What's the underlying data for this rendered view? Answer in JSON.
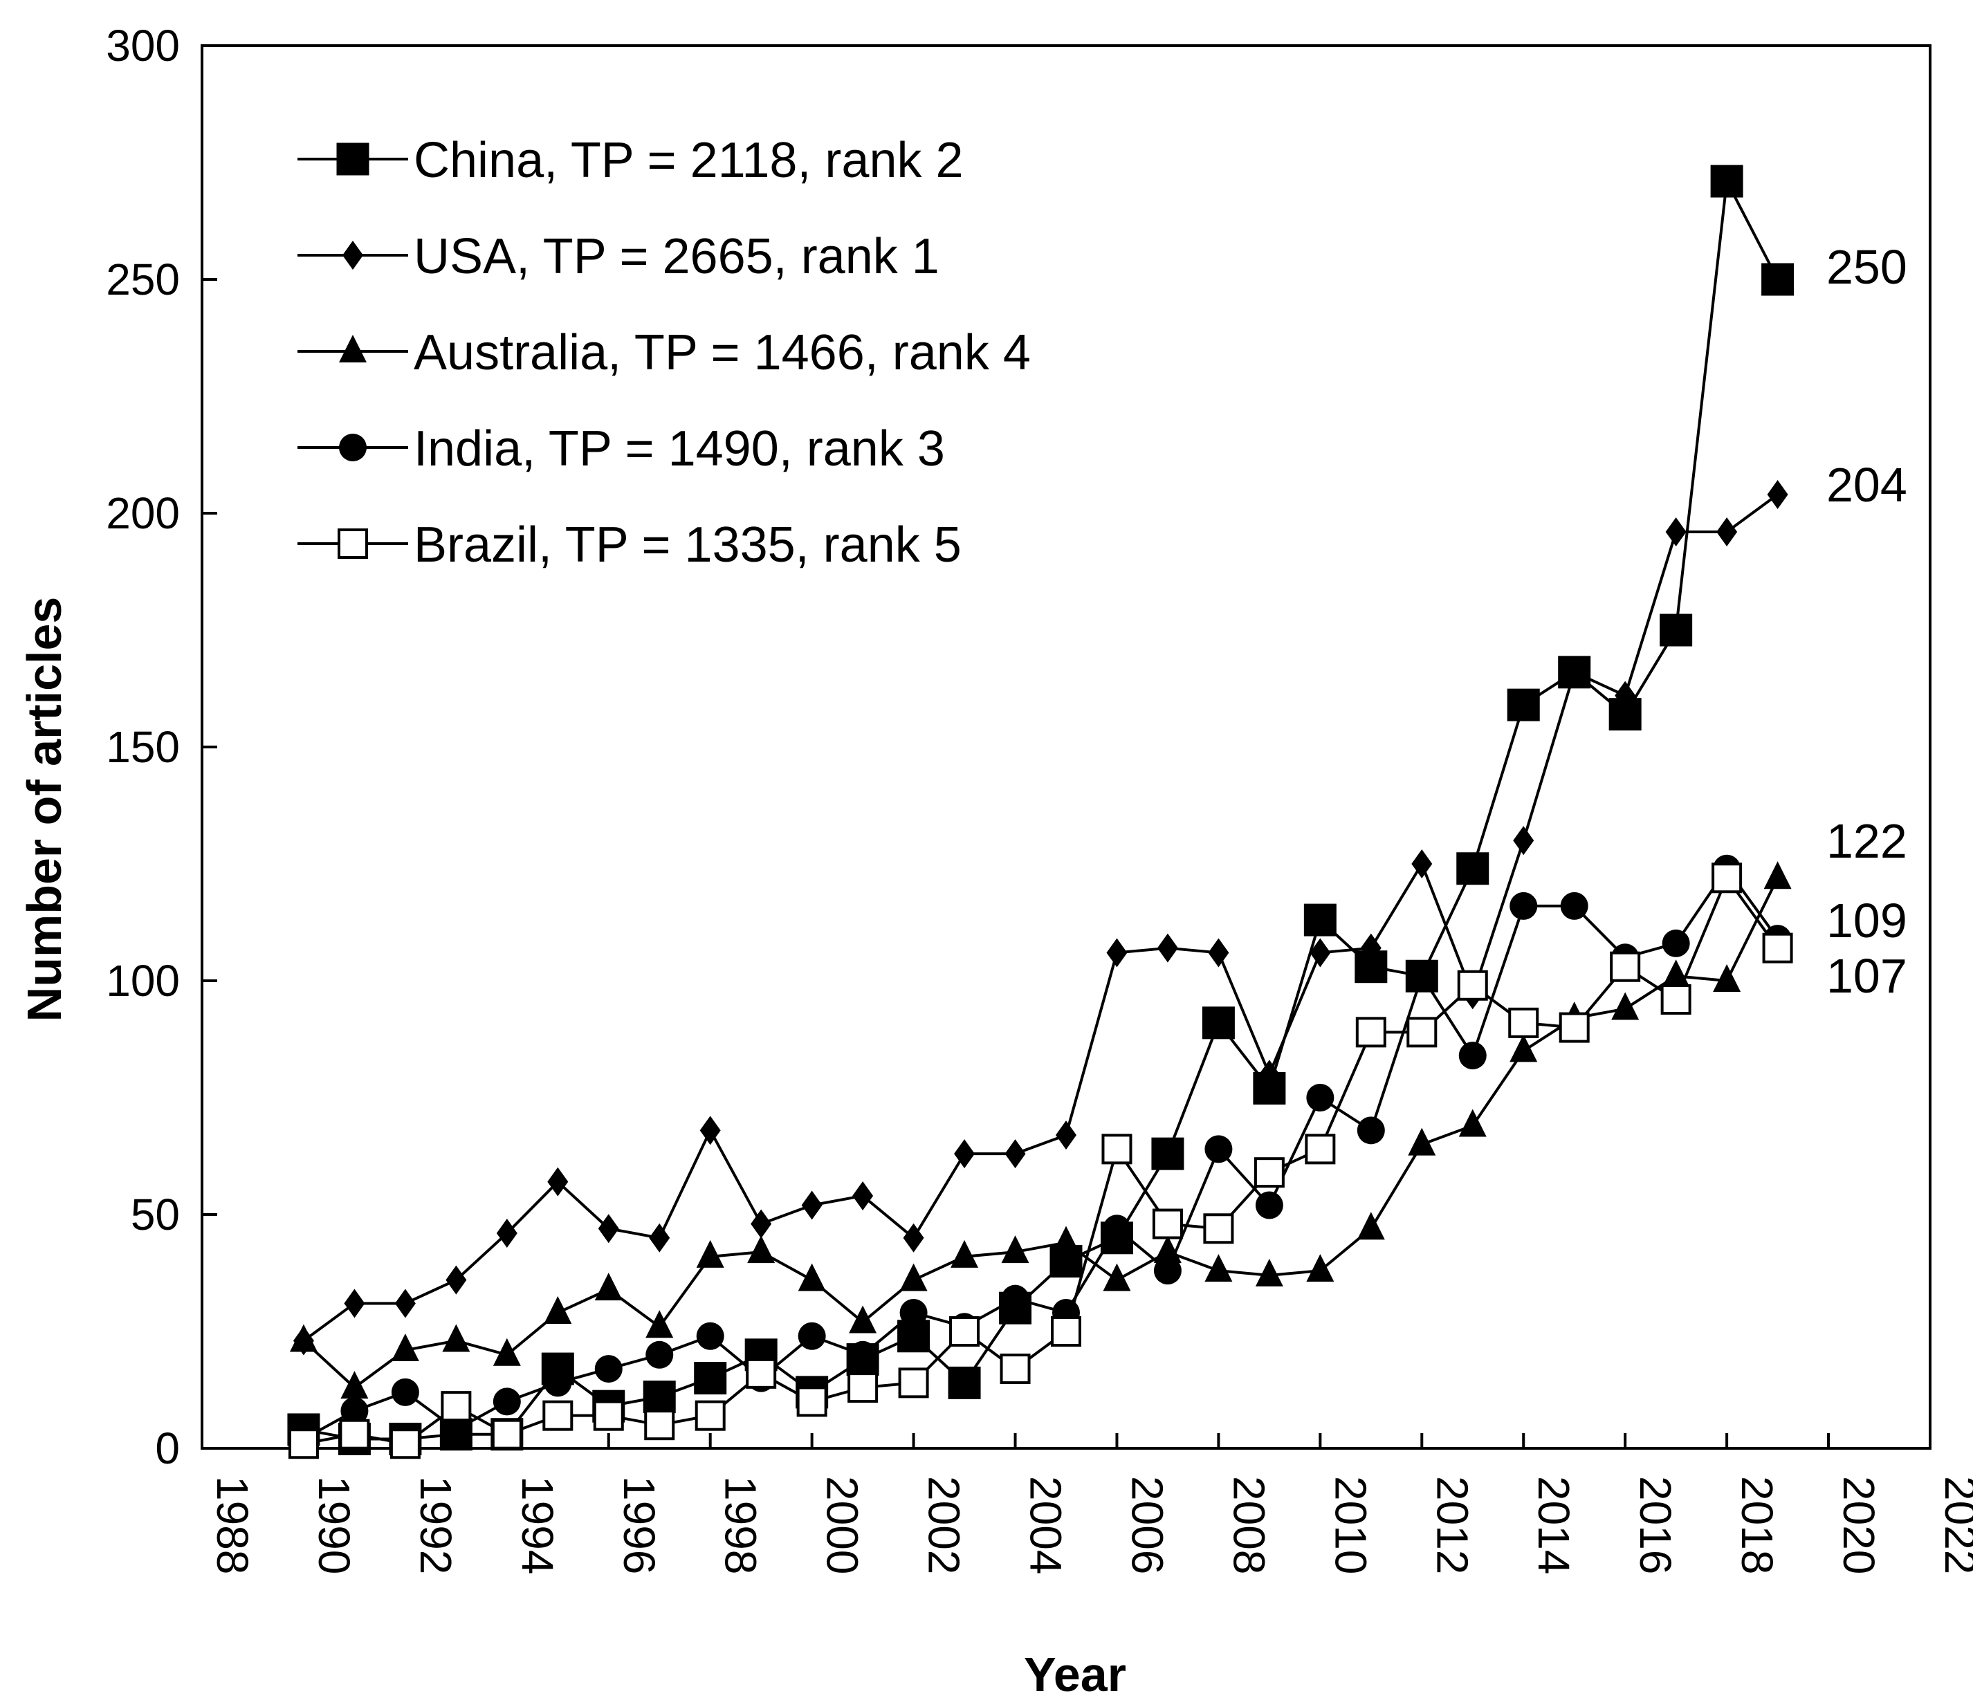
{
  "chart_data": {
    "type": "line",
    "title": "",
    "xlabel": "Year",
    "ylabel": "Number of articles",
    "xlim": [
      1988,
      2022
    ],
    "ylim": [
      0,
      300
    ],
    "xticks": [
      "1988",
      "1990",
      "1992",
      "1994",
      "1996",
      "1998",
      "2000",
      "2002",
      "2004",
      "2006",
      "2008",
      "2010",
      "2012",
      "2014",
      "2016",
      "2018",
      "2020",
      "2022"
    ],
    "yticks": [
      "0",
      "50",
      "100",
      "150",
      "200",
      "250",
      "300"
    ],
    "grid": false,
    "legend_position": "top-left",
    "x": [
      1990,
      1991,
      1992,
      1993,
      1994,
      1995,
      1996,
      1997,
      1998,
      1999,
      2000,
      2001,
      2002,
      2003,
      2004,
      2005,
      2006,
      2007,
      2008,
      2009,
      2010,
      2011,
      2012,
      2013,
      2014,
      2015,
      2016,
      2017,
      2018,
      2019
    ],
    "series": [
      {
        "name": "China, TP = 2118, rank 2",
        "marker": "square-filled",
        "values": [
          4,
          2,
          2,
          3,
          3,
          17,
          9,
          11,
          15,
          20,
          12,
          19,
          24,
          14,
          30,
          40,
          45,
          63,
          91,
          77,
          113,
          103,
          101,
          124,
          159,
          166,
          157,
          175,
          271,
          250
        ]
      },
      {
        "name": "USA, TP = 2665, rank 1",
        "marker": "diamond-filled",
        "values": [
          23,
          31,
          31,
          36,
          46,
          57,
          47,
          45,
          68,
          48,
          52,
          54,
          45,
          63,
          63,
          67,
          106,
          107,
          106,
          80,
          106,
          107,
          125,
          97,
          130,
          166,
          161,
          196,
          196,
          204
        ]
      },
      {
        "name": "Australia, TP = 1466, rank 4",
        "marker": "triangle-filled",
        "values": [
          23,
          13,
          21,
          23,
          20,
          29,
          34,
          26,
          41,
          42,
          36,
          27,
          36,
          41,
          42,
          44,
          36,
          42,
          38,
          37,
          38,
          47,
          65,
          69,
          85,
          92,
          94,
          101,
          100,
          122
        ]
      },
      {
        "name": "India, TP = 1490, rank 3",
        "marker": "circle-filled",
        "values": [
          2,
          8,
          12,
          4,
          10,
          14,
          17,
          20,
          24,
          15,
          24,
          20,
          29,
          26,
          32,
          29,
          47,
          38,
          64,
          52,
          75,
          68,
          101,
          84,
          116,
          116,
          105,
          108,
          124,
          109
        ]
      },
      {
        "name": "Brazil, TP = 1335, rank 5",
        "marker": "square-open",
        "values": [
          1,
          3,
          1,
          9,
          3,
          7,
          7,
          5,
          7,
          16,
          10,
          13,
          14,
          25,
          17,
          25,
          64,
          48,
          47,
          59,
          64,
          89,
          89,
          99,
          91,
          90,
          103,
          96,
          122,
          107
        ]
      }
    ],
    "annotations": [
      {
        "text": "250",
        "value": 250
      },
      {
        "text": "204",
        "value": 204
      },
      {
        "text": "122",
        "value": 122
      },
      {
        "text": "109",
        "value": 109
      },
      {
        "text": "107",
        "value": 107
      }
    ]
  }
}
